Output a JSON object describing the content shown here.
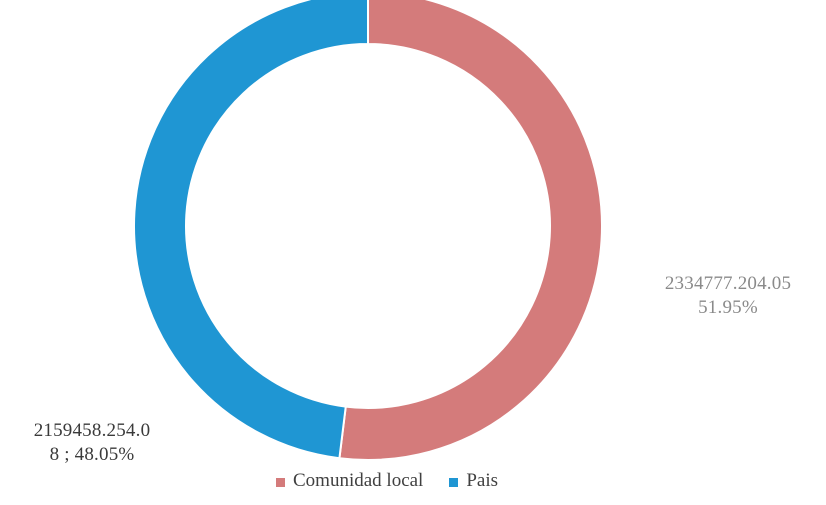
{
  "chart_data": {
    "type": "doughnut",
    "series": [
      {
        "name": "Comunidad local",
        "value": 2334777.20405,
        "percent": 51.95,
        "color": "#D47B7B",
        "label_lines": [
          "2334777.204.05",
          "51.95%"
        ]
      },
      {
        "name": "Pais",
        "value": 2159458.25408,
        "percent": 48.05,
        "color": "#1F96D3",
        "label_lines": [
          "2159458.254.0",
          "8 ; 48.05%"
        ]
      }
    ],
    "legend_position": "bottom",
    "start_angle": "top",
    "direction": "clockwise"
  }
}
